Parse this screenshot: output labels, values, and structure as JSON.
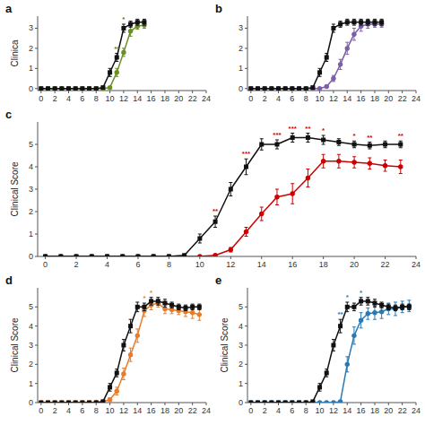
{
  "chart_data": [
    {
      "type": "line",
      "title": "a",
      "y_label": "Clinica",
      "x": [
        0,
        1,
        2,
        3,
        4,
        5,
        6,
        7,
        8,
        9,
        10,
        11,
        12,
        13,
        14,
        15
      ],
      "xlim": [
        -0.5,
        24
      ],
      "xticks": [
        0,
        2,
        4,
        6,
        8,
        10,
        12,
        14,
        16,
        18,
        20,
        22,
        24
      ],
      "ylim": [
        -0.1,
        3.6
      ],
      "yticks": [
        0,
        1,
        2,
        3
      ],
      "grid": false,
      "series": [
        {
          "color": "#6b8e23",
          "marker": "circle",
          "values": [
            0,
            0,
            0,
            0,
            0,
            0,
            0,
            0,
            0,
            0,
            0.05,
            0.8,
            1.8,
            2.85,
            3.1,
            3.15
          ],
          "errors": [
            0,
            0,
            0,
            0,
            0,
            0,
            0,
            0,
            0,
            0,
            0.05,
            0.2,
            0.2,
            0.25,
            0.15,
            0.15
          ]
        },
        {
          "color": "#111111",
          "marker": "square",
          "values": [
            0,
            0,
            0,
            0,
            0,
            0,
            0,
            0,
            0,
            0.05,
            0.8,
            1.55,
            3.0,
            3.2,
            3.3,
            3.3
          ],
          "errors": [
            0,
            0,
            0,
            0,
            0,
            0,
            0,
            0,
            0,
            0.05,
            0.2,
            0.2,
            0.2,
            0.15,
            0.15,
            0.15
          ]
        }
      ],
      "annotations": [
        {
          "x": 11,
          "text": "**",
          "color": "#4a7c1f"
        },
        {
          "x": 12,
          "text": "*",
          "color": "#4a7c1f"
        }
      ]
    },
    {
      "type": "line",
      "title": "b",
      "x": [
        0,
        1,
        2,
        3,
        4,
        5,
        6,
        7,
        8,
        9,
        10,
        11,
        12,
        13,
        14,
        15,
        16,
        17,
        18,
        19
      ],
      "xlim": [
        -0.5,
        24
      ],
      "xticks": [
        0,
        2,
        4,
        6,
        8,
        10,
        12,
        14,
        16,
        18,
        20,
        22,
        24
      ],
      "ylim": [
        -0.1,
        3.6
      ],
      "yticks": [
        0,
        1,
        2,
        3
      ],
      "grid": false,
      "series": [
        {
          "color": "#7b5ea7",
          "marker": "circle",
          "values": [
            0,
            0,
            0,
            0,
            0,
            0,
            0,
            0,
            0,
            0,
            0,
            0.1,
            0.5,
            1.2,
            2.0,
            2.7,
            3.1,
            3.2,
            3.2,
            3.2
          ],
          "errors": [
            0,
            0,
            0,
            0,
            0,
            0,
            0,
            0,
            0,
            0,
            0,
            0.05,
            0.15,
            0.25,
            0.3,
            0.3,
            0.25,
            0.2,
            0.15,
            0.15
          ]
        },
        {
          "color": "#111111",
          "marker": "square",
          "values": [
            0,
            0,
            0,
            0,
            0,
            0,
            0,
            0,
            0,
            0.05,
            0.8,
            1.55,
            3.0,
            3.2,
            3.3,
            3.3,
            3.3,
            3.3,
            3.3,
            3.3
          ],
          "errors": [
            0,
            0,
            0,
            0,
            0,
            0,
            0,
            0,
            0,
            0.05,
            0.2,
            0.2,
            0.2,
            0.15,
            0.15,
            0.15,
            0.15,
            0.15,
            0.15,
            0.15
          ]
        }
      ]
    },
    {
      "type": "line",
      "title": "c",
      "y_label": "Clinical Score",
      "x": [
        0,
        1,
        2,
        3,
        4,
        5,
        6,
        7,
        8,
        9,
        10,
        11,
        12,
        13,
        14,
        15,
        16,
        17,
        18,
        19,
        20,
        21,
        22,
        23
      ],
      "xlim": [
        -0.5,
        24
      ],
      "xticks": [
        0,
        2,
        4,
        6,
        8,
        10,
        12,
        14,
        16,
        18,
        20,
        22,
        24
      ],
      "ylim": [
        0,
        6
      ],
      "yticks": [
        0,
        1,
        2,
        3,
        4,
        5
      ],
      "grid": false,
      "series": [
        {
          "color": "#cc0000",
          "marker": "circle",
          "values": [
            0,
            0,
            0,
            0,
            0,
            0,
            0,
            0,
            0,
            0,
            0,
            0.05,
            0.3,
            1.1,
            1.9,
            2.65,
            2.8,
            3.5,
            4.25,
            4.25,
            4.2,
            4.15,
            4.05,
            4.0
          ],
          "errors": [
            0,
            0,
            0,
            0,
            0,
            0,
            0,
            0,
            0,
            0,
            0,
            0.05,
            0.1,
            0.2,
            0.3,
            0.35,
            0.45,
            0.4,
            0.3,
            0.3,
            0.25,
            0.25,
            0.25,
            0.3
          ]
        },
        {
          "color": "#111111",
          "marker": "square",
          "values": [
            0,
            0,
            0,
            0,
            0,
            0,
            0,
            0,
            0,
            0.05,
            0.8,
            1.55,
            3.0,
            4.0,
            5.0,
            5.0,
            5.3,
            5.3,
            5.2,
            5.1,
            5.0,
            4.95,
            5.0,
            5.0
          ],
          "errors": [
            0,
            0,
            0,
            0,
            0,
            0,
            0,
            0,
            0,
            0.05,
            0.2,
            0.25,
            0.3,
            0.35,
            0.25,
            0.2,
            0.2,
            0.2,
            0.2,
            0.15,
            0.15,
            0.15,
            0.15,
            0.15
          ]
        }
      ],
      "annotations": [
        {
          "x": 11,
          "text": "**",
          "color": "#cc0000"
        },
        {
          "x": 13,
          "text": "***",
          "color": "#cc0000"
        },
        {
          "x": 15,
          "text": "***",
          "color": "#cc0000"
        },
        {
          "x": 16,
          "text": "***",
          "color": "#cc0000"
        },
        {
          "x": 17,
          "text": "**",
          "color": "#cc0000"
        },
        {
          "x": 18,
          "text": "*",
          "color": "#cc0000"
        },
        {
          "x": 20,
          "text": "*",
          "color": "#cc0000"
        },
        {
          "x": 21,
          "text": "**",
          "color": "#cc0000"
        },
        {
          "x": 23,
          "text": "**",
          "color": "#cc0000"
        }
      ]
    },
    {
      "type": "line",
      "title": "d",
      "y_label": "Clinical Score",
      "x": [
        0,
        1,
        2,
        3,
        4,
        5,
        6,
        7,
        8,
        9,
        10,
        11,
        12,
        13,
        14,
        15,
        16,
        17,
        18,
        19,
        20,
        21,
        22,
        23
      ],
      "xlim": [
        -0.5,
        24
      ],
      "xticks": [
        0,
        2,
        4,
        6,
        8,
        10,
        12,
        14,
        16,
        18,
        20,
        22,
        24
      ],
      "ylim": [
        0,
        6
      ],
      "yticks": [
        0,
        1,
        2,
        3,
        4,
        5
      ],
      "grid": false,
      "series": [
        {
          "color": "#e87c2a",
          "marker": "circle",
          "values": [
            0,
            0,
            0,
            0,
            0,
            0,
            0,
            0,
            0.02,
            0.05,
            0.15,
            0.6,
            1.5,
            2.5,
            3.5,
            4.8,
            5.1,
            5.2,
            4.9,
            4.85,
            4.8,
            4.75,
            4.7,
            4.6
          ],
          "errors": [
            0,
            0,
            0,
            0,
            0,
            0,
            0,
            0,
            0.02,
            0.05,
            0.1,
            0.2,
            0.3,
            0.35,
            0.35,
            0.3,
            0.25,
            0.2,
            0.25,
            0.2,
            0.2,
            0.25,
            0.3,
            0.3
          ]
        },
        {
          "color": "#111111",
          "marker": "square",
          "values": [
            0,
            0,
            0,
            0,
            0,
            0,
            0,
            0,
            0,
            0.05,
            0.8,
            1.55,
            3.0,
            4.0,
            5.0,
            5.0,
            5.3,
            5.3,
            5.2,
            5.1,
            5.0,
            4.95,
            5.0,
            5.0
          ],
          "errors": [
            0,
            0,
            0,
            0,
            0,
            0,
            0,
            0,
            0,
            0.05,
            0.2,
            0.2,
            0.3,
            0.35,
            0.25,
            0.2,
            0.2,
            0.2,
            0.2,
            0.15,
            0.15,
            0.15,
            0.15,
            0.15
          ]
        }
      ],
      "annotations": [
        {
          "x": 15,
          "text": "*",
          "color": "#e87c2a"
        },
        {
          "x": 16,
          "text": "*",
          "color": "#e87c2a"
        }
      ]
    },
    {
      "type": "line",
      "title": "e",
      "y_label": "Clinical Score",
      "x": [
        0,
        1,
        2,
        3,
        4,
        5,
        6,
        7,
        8,
        9,
        10,
        11,
        12,
        13,
        14,
        15,
        16,
        17,
        18,
        19,
        20,
        21,
        22,
        23
      ],
      "xlim": [
        -0.5,
        24
      ],
      "xticks": [
        0,
        2,
        4,
        6,
        8,
        10,
        12,
        14,
        16,
        18,
        20,
        22,
        24
      ],
      "ylim": [
        0,
        6
      ],
      "yticks": [
        0,
        1,
        2,
        3,
        4,
        5
      ],
      "grid": false,
      "series": [
        {
          "color": "#2979b5",
          "marker": "circle",
          "values": [
            0,
            0,
            0,
            0,
            0,
            0,
            0,
            0,
            0,
            0,
            0,
            0,
            0,
            0.05,
            2.0,
            3.5,
            4.3,
            4.65,
            4.7,
            4.75,
            4.9,
            4.9,
            5.0,
            5.05
          ],
          "errors": [
            0,
            0,
            0,
            0,
            0,
            0,
            0,
            0,
            0,
            0,
            0,
            0,
            0,
            0.05,
            0.4,
            0.45,
            0.4,
            0.3,
            0.35,
            0.35,
            0.3,
            0.35,
            0.3,
            0.3
          ]
        },
        {
          "color": "#111111",
          "marker": "square",
          "values": [
            0,
            0,
            0,
            0,
            0,
            0,
            0,
            0,
            0,
            0.05,
            0.8,
            1.55,
            3.0,
            4.0,
            5.0,
            5.0,
            5.3,
            5.3,
            5.2,
            5.1,
            5.0,
            4.95,
            5.0,
            5.0
          ],
          "errors": [
            0,
            0,
            0,
            0,
            0,
            0,
            0,
            0,
            0,
            0.05,
            0.2,
            0.2,
            0.3,
            0.35,
            0.25,
            0.2,
            0.2,
            0.2,
            0.2,
            0.15,
            0.15,
            0.15,
            0.15,
            0.15
          ]
        }
      ],
      "annotations": [
        {
          "x": 13,
          "text": "**",
          "color": "#2979b5"
        },
        {
          "x": 14,
          "text": "*",
          "color": "#2979b5"
        },
        {
          "x": 16,
          "text": "*",
          "color": "#2979b5"
        }
      ]
    }
  ]
}
